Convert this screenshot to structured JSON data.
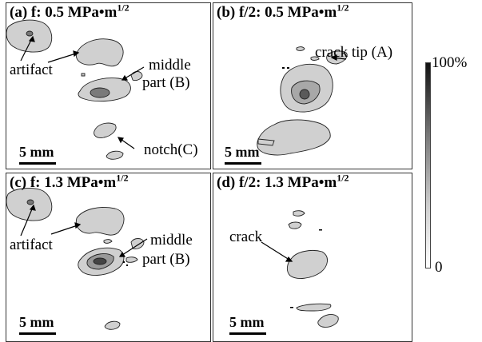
{
  "panels": {
    "a": {
      "title_main": "(a) f: 0.5 MPa•m",
      "title_sup": "1/2",
      "labels": {
        "artifact": "artifact",
        "middle": "middle",
        "part": "part (B)",
        "notch": "notch(C)"
      },
      "scale": "5 mm"
    },
    "b": {
      "title_main": "(b) f/2: 0.5 MPa•m",
      "title_sup": "1/2",
      "labels": {
        "crack_tip": "crack tip (A)"
      },
      "scale": "5 mm"
    },
    "c": {
      "title_main": "(c) f: 1.3 MPa•m",
      "title_sup": "1/2",
      "labels": {
        "artifact": "artifact",
        "middle": "middle",
        "part": "part (B)"
      },
      "scale": "5 mm"
    },
    "d": {
      "title_main": "(d) f/2: 1.3 MPa•m",
      "title_sup": "1/2",
      "labels": {
        "crack": "crack"
      },
      "scale": "5 mm"
    }
  },
  "colorbar": {
    "max_label": "100%",
    "min_label": "0"
  }
}
